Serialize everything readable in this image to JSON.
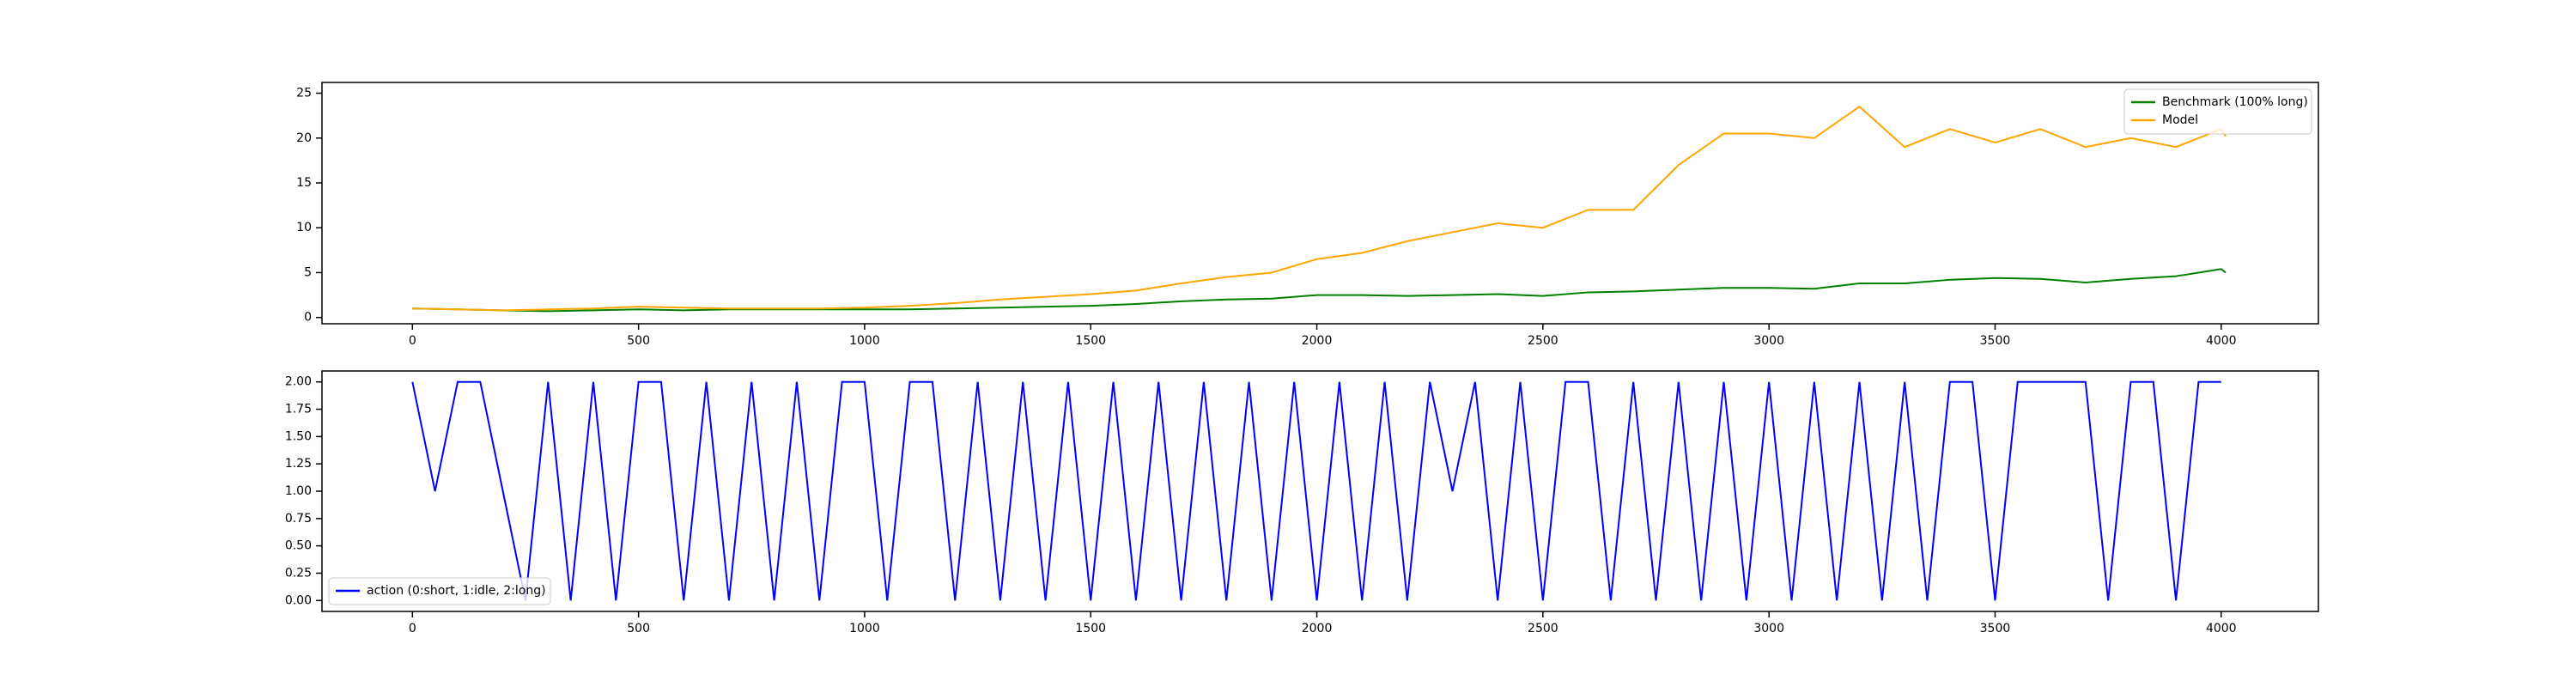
{
  "chart_data": [
    {
      "type": "line",
      "x": [
        0,
        100,
        200,
        300,
        400,
        500,
        600,
        700,
        800,
        900,
        1000,
        1100,
        1200,
        1300,
        1400,
        1500,
        1600,
        1700,
        1800,
        1900,
        2000,
        2100,
        2200,
        2300,
        2400,
        2500,
        2600,
        2700,
        2800,
        2900,
        3000,
        3100,
        3200,
        3300,
        3400,
        3500,
        3600,
        3700,
        3800,
        3900,
        4000,
        4010
      ],
      "series": [
        {
          "name": "Benchmark (100% long)",
          "color": "#008000",
          "values": [
            1,
            0.9,
            0.8,
            0.7,
            0.8,
            0.9,
            0.8,
            0.9,
            0.9,
            0.9,
            0.9,
            0.9,
            1.0,
            1.1,
            1.2,
            1.3,
            1.5,
            1.8,
            2.0,
            2.1,
            2.5,
            2.5,
            2.4,
            2.5,
            2.6,
            2.4,
            2.8,
            2.9,
            3.1,
            3.3,
            3.3,
            3.2,
            3.8,
            3.8,
            4.2,
            4.4,
            4.3,
            3.9,
            4.3,
            4.6,
            5.4,
            5.0
          ]
        },
        {
          "name": "Model",
          "color": "#ffa500",
          "values": [
            1,
            0.9,
            0.8,
            0.9,
            1.0,
            1.2,
            1.1,
            1.0,
            1.0,
            1.0,
            1.1,
            1.3,
            1.6,
            2.0,
            2.3,
            2.6,
            3.0,
            3.8,
            4.5,
            5.0,
            6.5,
            7.2,
            8.5,
            9.5,
            10.5,
            10,
            12,
            12,
            17,
            20.5,
            20.5,
            20,
            23.5,
            19,
            21,
            19.5,
            21,
            19,
            20,
            19,
            21,
            20.2
          ]
        }
      ],
      "xlim": [
        -200,
        4215
      ],
      "xticks": [
        0,
        500,
        1000,
        1500,
        2000,
        2500,
        3000,
        3500,
        4000
      ],
      "ylim": [
        -0.7,
        26.2
      ],
      "yticks": [
        0,
        5,
        10,
        15,
        20,
        25
      ],
      "legend": "upper right"
    },
    {
      "type": "line",
      "x": [
        0,
        50,
        100,
        150,
        200,
        250,
        300,
        350,
        400,
        450,
        500,
        550,
        600,
        650,
        700,
        750,
        800,
        850,
        900,
        950,
        1000,
        1050,
        1100,
        1150,
        1200,
        1250,
        1300,
        1350,
        1400,
        1450,
        1500,
        1550,
        1600,
        1650,
        1700,
        1750,
        1800,
        1850,
        1900,
        1950,
        2000,
        2050,
        2100,
        2150,
        2200,
        2250,
        2300,
        2350,
        2400,
        2450,
        2500,
        2550,
        2600,
        2650,
        2700,
        2750,
        2800,
        2850,
        2900,
        2950,
        3000,
        3050,
        3100,
        3150,
        3200,
        3250,
        3300,
        3350,
        3400,
        3450,
        3500,
        3550,
        3600,
        3650,
        3700,
        3750,
        3800,
        3850,
        3900,
        3950,
        4000
      ],
      "series": [
        {
          "name": "action (0:short, 1:idle, 2:long)",
          "color": "#0000ff",
          "values": [
            2,
            1,
            2,
            2,
            1,
            0,
            2,
            0,
            2,
            0,
            2,
            2,
            0,
            2,
            0,
            2,
            0,
            2,
            0,
            2,
            2,
            0,
            2,
            2,
            0,
            2,
            0,
            2,
            0,
            2,
            0,
            2,
            0,
            2,
            0,
            2,
            0,
            2,
            0,
            2,
            0,
            2,
            0,
            2,
            0,
            2,
            1,
            2,
            0,
            2,
            0,
            2,
            2,
            0,
            2,
            0,
            2,
            0,
            2,
            0,
            2,
            0,
            2,
            0,
            2,
            0,
            2,
            0,
            2,
            2,
            0,
            2,
            2,
            2,
            2,
            0,
            2,
            2,
            0,
            2,
            2
          ]
        }
      ],
      "xlim": [
        -200,
        4215
      ],
      "xticks": [
        0,
        500,
        1000,
        1500,
        2000,
        2500,
        3000,
        3500,
        4000
      ],
      "ylim": [
        -0.1,
        2.1
      ],
      "yticks": [
        {
          "value": 0,
          "label": "0.00"
        },
        {
          "value": 0.25,
          "label": "0.25"
        },
        {
          "value": 0.5,
          "label": "0.50"
        },
        {
          "value": 0.75,
          "label": "0.75"
        },
        {
          "value": 1,
          "label": "1.00"
        },
        {
          "value": 1.25,
          "label": "1.25"
        },
        {
          "value": 1.5,
          "label": "1.50"
        },
        {
          "value": 1.75,
          "label": "1.75"
        },
        {
          "value": 2,
          "label": "2.00"
        }
      ],
      "legend": "lower left"
    }
  ]
}
